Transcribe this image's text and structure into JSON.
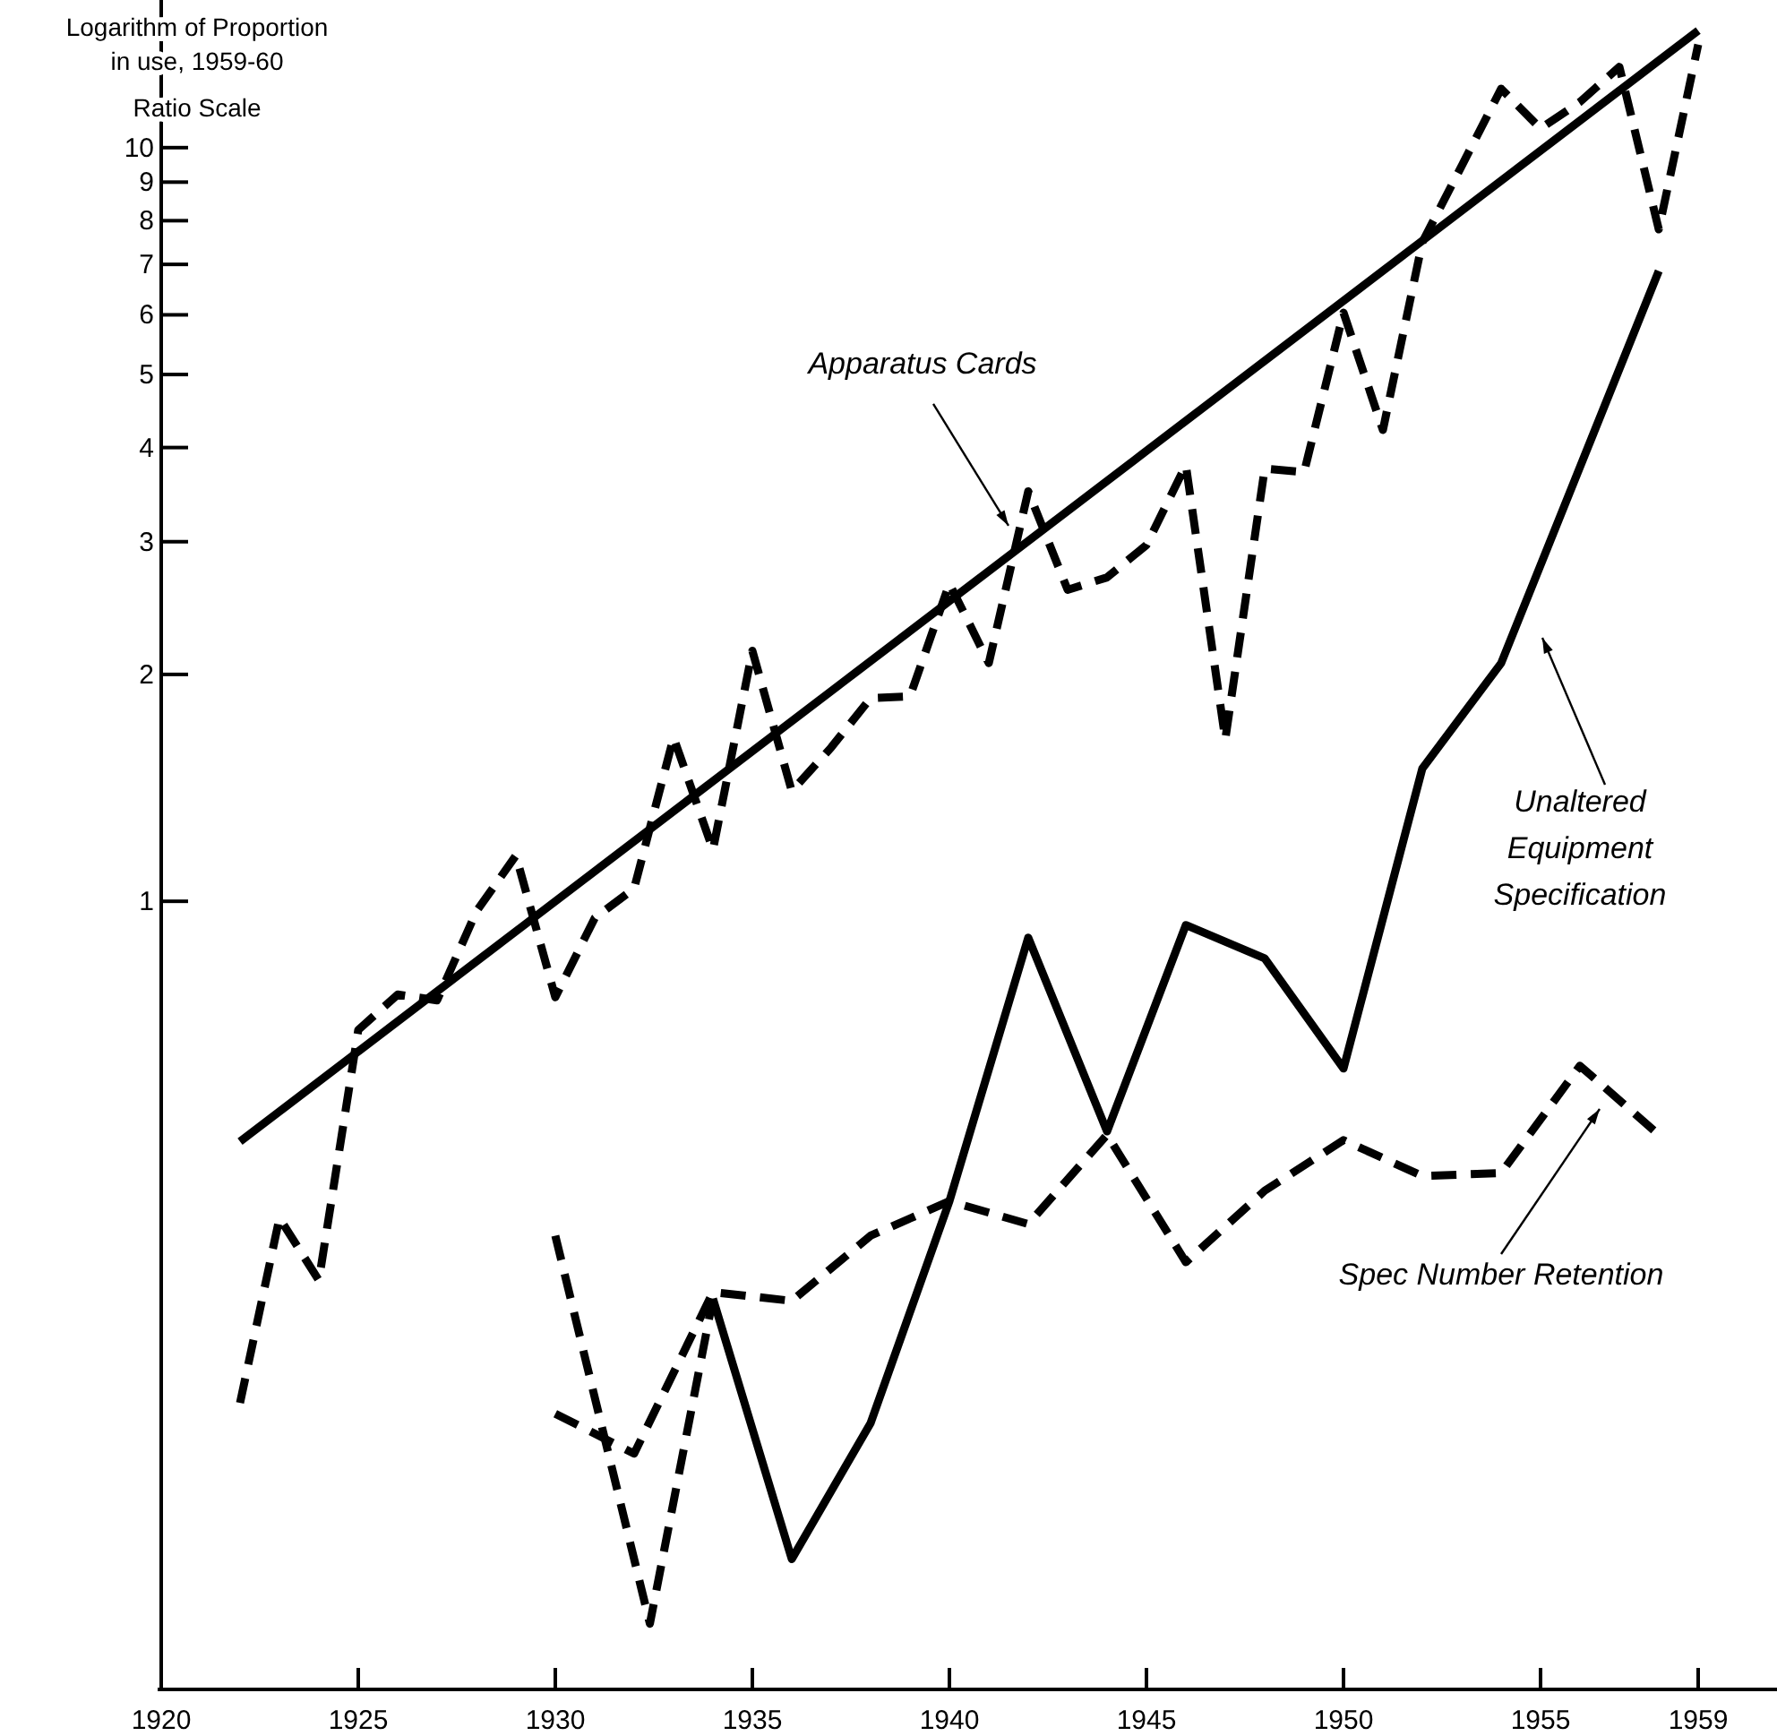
{
  "chart_data": {
    "type": "line",
    "ylabel": "Logarithm of Proportion\nin use, 1959-60\nRatio Scale",
    "log": true,
    "xlim": [
      1920,
      1961
    ],
    "xticks": [
      1920,
      1925,
      1930,
      1935,
      1940,
      1945,
      1950,
      1955,
      1959
    ],
    "ylim": [
      0.09,
      15.7
    ],
    "yticks": [
      1,
      2,
      3,
      4,
      5,
      6,
      7,
      8,
      9,
      10
    ],
    "series": [
      {
        "color": "#000000",
        "line_style": "solid",
        "x": [
          1922,
          1959
        ],
        "values": [
          0.48,
          14.3
        ]
      },
      {
        "color": "#000000",
        "line_style": "dashed",
        "x": [
          1922,
          1923,
          1924,
          1925,
          1926,
          1927,
          1928,
          1929,
          1930,
          1931,
          1932,
          1933,
          1934,
          1935,
          1936,
          1937,
          1938,
          1939,
          1940,
          1941,
          1942,
          1943,
          1944,
          1945,
          1946,
          1947,
          1948,
          1949,
          1950,
          1951,
          1952,
          1953,
          1954,
          1955,
          1956,
          1957,
          1958,
          1959
        ],
        "values": [
          0.216,
          0.38,
          0.314,
          0.675,
          0.752,
          0.739,
          0.97,
          1.15,
          0.746,
          0.95,
          1.04,
          1.65,
          1.17,
          2.15,
          1.4,
          1.6,
          1.86,
          1.87,
          2.64,
          2.07,
          3.5,
          2.59,
          2.69,
          2.97,
          3.79,
          1.64,
          3.75,
          3.71,
          6.04,
          4.22,
          7.49,
          9.46,
          11.97,
          10.6,
          11.5,
          12.8,
          7.79,
          13.7
        ]
      },
      {
        "color": "#000000",
        "line_style": "dashed",
        "x": [
          1930,
          1932.4,
          1934
        ],
        "values": [
          0.36,
          0.11,
          0.297
        ]
      },
      {
        "color": "#000000",
        "line_style": "solid",
        "x": [
          1934,
          1936,
          1938,
          1940,
          1942,
          1944,
          1946,
          1948,
          1950,
          1952,
          1954,
          1958
        ],
        "values": [
          0.297,
          0.134,
          0.203,
          0.4,
          0.895,
          0.495,
          0.93,
          0.84,
          0.6,
          1.5,
          2.07,
          6.86
        ]
      },
      {
        "color": "#000000",
        "line_style": "dashed",
        "x": [
          1930,
          1932,
          1934,
          1936,
          1938,
          1940,
          1942,
          1944,
          1946,
          1948,
          1950,
          1952,
          1954,
          1956,
          1958
        ],
        "values": [
          0.209,
          0.185,
          0.303,
          0.295,
          0.36,
          0.4,
          0.373,
          0.49,
          0.332,
          0.413,
          0.482,
          0.432,
          0.436,
          0.605,
          0.49
        ]
      }
    ],
    "annotations": [
      {
        "text": "Apparatus Cards",
        "x": 1941.5,
        "y": 3.15
      },
      "Unaltered\nEquipment\nSpecification",
      "Spec Number Retention"
    ]
  }
}
